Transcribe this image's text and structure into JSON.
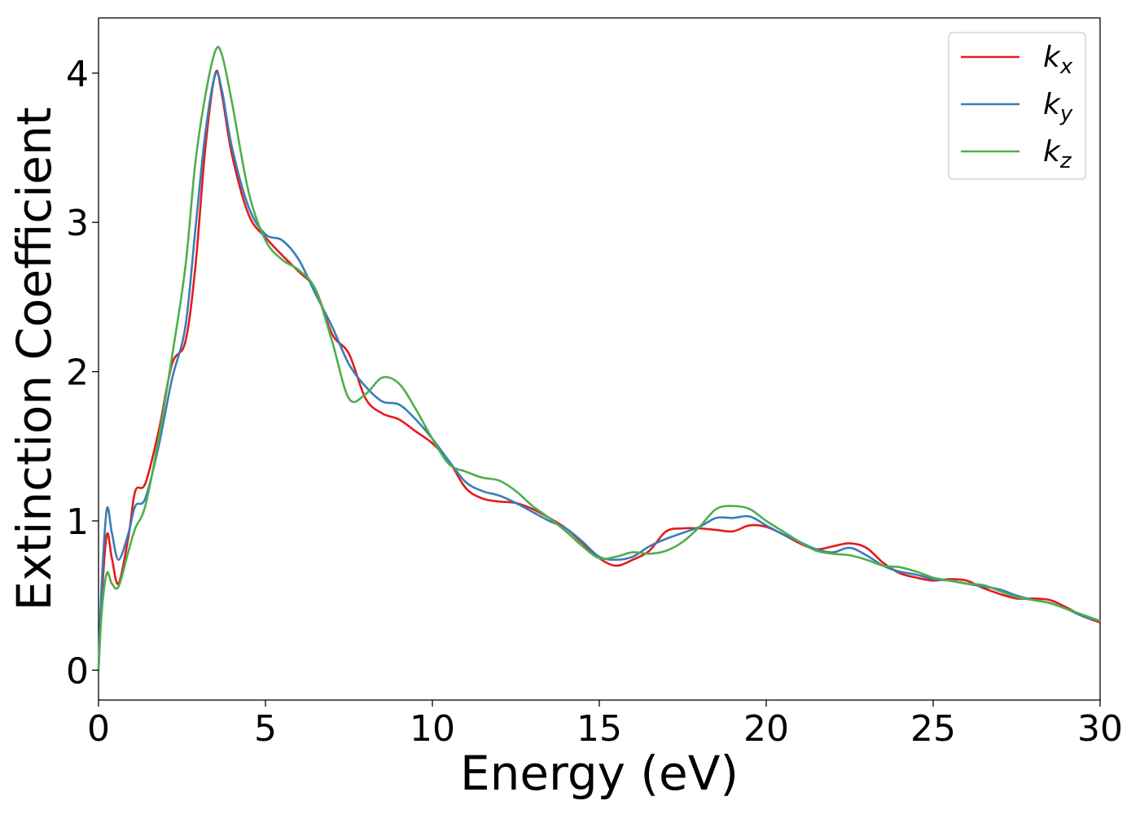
{
  "chart_data": {
    "type": "line",
    "title": "",
    "xlabel": "Energy (eV)",
    "ylabel": "Extinction Coefficient",
    "xlim": [
      0,
      30
    ],
    "ylim": [
      -0.2,
      4.37
    ],
    "xticks": [
      0,
      5,
      10,
      15,
      20,
      25,
      30
    ],
    "yticks": [
      0,
      1,
      2,
      3,
      4
    ],
    "grid": false,
    "legend_position": "top-right",
    "series": [
      {
        "name": "k_x",
        "legend_main": "k",
        "legend_sub": "x",
        "color": "#e41a1c",
        "points": [
          [
            0,
            0
          ],
          [
            0.1,
            0.5
          ],
          [
            0.25,
            0.91
          ],
          [
            0.4,
            0.75
          ],
          [
            0.6,
            0.58
          ],
          [
            0.9,
            0.9
          ],
          [
            1.1,
            1.2
          ],
          [
            1.4,
            1.25
          ],
          [
            1.8,
            1.6
          ],
          [
            2.2,
            2.05
          ],
          [
            2.6,
            2.2
          ],
          [
            2.9,
            2.7
          ],
          [
            3.2,
            3.5
          ],
          [
            3.5,
            4.0
          ],
          [
            3.7,
            3.85
          ],
          [
            4.0,
            3.45
          ],
          [
            4.5,
            3.05
          ],
          [
            5.0,
            2.9
          ],
          [
            5.5,
            2.78
          ],
          [
            6.0,
            2.67
          ],
          [
            6.5,
            2.55
          ],
          [
            7.0,
            2.25
          ],
          [
            7.5,
            2.12
          ],
          [
            8.0,
            1.82
          ],
          [
            8.5,
            1.72
          ],
          [
            9.0,
            1.68
          ],
          [
            9.5,
            1.6
          ],
          [
            10.0,
            1.52
          ],
          [
            10.5,
            1.4
          ],
          [
            11.0,
            1.22
          ],
          [
            11.5,
            1.15
          ],
          [
            12.0,
            1.13
          ],
          [
            12.5,
            1.12
          ],
          [
            13.0,
            1.08
          ],
          [
            13.5,
            1.02
          ],
          [
            14.0,
            0.95
          ],
          [
            14.5,
            0.85
          ],
          [
            15.0,
            0.75
          ],
          [
            15.5,
            0.7
          ],
          [
            16.0,
            0.74
          ],
          [
            16.5,
            0.8
          ],
          [
            17.0,
            0.93
          ],
          [
            17.5,
            0.95
          ],
          [
            18.0,
            0.95
          ],
          [
            18.5,
            0.94
          ],
          [
            19.0,
            0.93
          ],
          [
            19.5,
            0.97
          ],
          [
            20.0,
            0.96
          ],
          [
            20.5,
            0.91
          ],
          [
            21.0,
            0.85
          ],
          [
            21.5,
            0.81
          ],
          [
            22.0,
            0.83
          ],
          [
            22.5,
            0.85
          ],
          [
            23.0,
            0.82
          ],
          [
            23.5,
            0.72
          ],
          [
            24.0,
            0.65
          ],
          [
            24.5,
            0.62
          ],
          [
            25.0,
            0.6
          ],
          [
            25.5,
            0.61
          ],
          [
            26.0,
            0.6
          ],
          [
            26.5,
            0.55
          ],
          [
            27.0,
            0.51
          ],
          [
            27.5,
            0.48
          ],
          [
            28.0,
            0.48
          ],
          [
            28.5,
            0.47
          ],
          [
            29.0,
            0.42
          ],
          [
            29.5,
            0.36
          ],
          [
            30.0,
            0.32
          ]
        ]
      },
      {
        "name": "k_y",
        "legend_main": "k",
        "legend_sub": "y",
        "color": "#377eb8",
        "points": [
          [
            0,
            0
          ],
          [
            0.1,
            0.6
          ],
          [
            0.25,
            1.08
          ],
          [
            0.4,
            0.92
          ],
          [
            0.6,
            0.74
          ],
          [
            0.9,
            0.92
          ],
          [
            1.1,
            1.1
          ],
          [
            1.4,
            1.15
          ],
          [
            1.8,
            1.5
          ],
          [
            2.2,
            1.95
          ],
          [
            2.6,
            2.3
          ],
          [
            2.9,
            2.95
          ],
          [
            3.2,
            3.6
          ],
          [
            3.5,
            3.99
          ],
          [
            3.7,
            3.88
          ],
          [
            4.0,
            3.5
          ],
          [
            4.5,
            3.1
          ],
          [
            5.0,
            2.92
          ],
          [
            5.5,
            2.88
          ],
          [
            6.0,
            2.75
          ],
          [
            6.5,
            2.52
          ],
          [
            7.0,
            2.3
          ],
          [
            7.5,
            2.05
          ],
          [
            8.0,
            1.9
          ],
          [
            8.5,
            1.8
          ],
          [
            9.0,
            1.78
          ],
          [
            9.5,
            1.68
          ],
          [
            10.0,
            1.55
          ],
          [
            10.5,
            1.4
          ],
          [
            11.0,
            1.26
          ],
          [
            11.5,
            1.2
          ],
          [
            12.0,
            1.17
          ],
          [
            12.5,
            1.12
          ],
          [
            13.0,
            1.06
          ],
          [
            13.5,
            1.0
          ],
          [
            14.0,
            0.95
          ],
          [
            14.5,
            0.86
          ],
          [
            15.0,
            0.76
          ],
          [
            15.5,
            0.74
          ],
          [
            16.0,
            0.76
          ],
          [
            16.5,
            0.83
          ],
          [
            17.0,
            0.88
          ],
          [
            17.5,
            0.92
          ],
          [
            18.0,
            0.96
          ],
          [
            18.5,
            1.02
          ],
          [
            19.0,
            1.02
          ],
          [
            19.5,
            1.03
          ],
          [
            20.0,
            0.97
          ],
          [
            20.5,
            0.91
          ],
          [
            21.0,
            0.86
          ],
          [
            21.5,
            0.81
          ],
          [
            22.0,
            0.79
          ],
          [
            22.5,
            0.82
          ],
          [
            23.0,
            0.77
          ],
          [
            23.5,
            0.7
          ],
          [
            24.0,
            0.66
          ],
          [
            24.5,
            0.64
          ],
          [
            25.0,
            0.61
          ],
          [
            25.5,
            0.6
          ],
          [
            26.0,
            0.58
          ],
          [
            26.5,
            0.56
          ],
          [
            27.0,
            0.54
          ],
          [
            27.5,
            0.5
          ],
          [
            28.0,
            0.47
          ],
          [
            28.5,
            0.45
          ],
          [
            29.0,
            0.41
          ],
          [
            29.5,
            0.36
          ],
          [
            30.0,
            0.33
          ]
        ]
      },
      {
        "name": "k_z",
        "legend_main": "k",
        "legend_sub": "z",
        "color": "#4daf4a",
        "points": [
          [
            0,
            0
          ],
          [
            0.1,
            0.4
          ],
          [
            0.25,
            0.65
          ],
          [
            0.4,
            0.58
          ],
          [
            0.6,
            0.56
          ],
          [
            0.9,
            0.8
          ],
          [
            1.1,
            0.95
          ],
          [
            1.4,
            1.1
          ],
          [
            1.8,
            1.55
          ],
          [
            2.2,
            2.1
          ],
          [
            2.6,
            2.7
          ],
          [
            2.9,
            3.4
          ],
          [
            3.2,
            3.85
          ],
          [
            3.5,
            4.15
          ],
          [
            3.7,
            4.12
          ],
          [
            4.0,
            3.8
          ],
          [
            4.5,
            3.2
          ],
          [
            5.0,
            2.88
          ],
          [
            5.5,
            2.75
          ],
          [
            6.0,
            2.68
          ],
          [
            6.5,
            2.55
          ],
          [
            7.0,
            2.2
          ],
          [
            7.5,
            1.82
          ],
          [
            8.0,
            1.85
          ],
          [
            8.5,
            1.96
          ],
          [
            9.0,
            1.92
          ],
          [
            9.5,
            1.75
          ],
          [
            10.0,
            1.55
          ],
          [
            10.5,
            1.38
          ],
          [
            11.0,
            1.33
          ],
          [
            11.5,
            1.29
          ],
          [
            12.0,
            1.27
          ],
          [
            12.5,
            1.2
          ],
          [
            13.0,
            1.1
          ],
          [
            13.5,
            1.02
          ],
          [
            14.0,
            0.93
          ],
          [
            14.5,
            0.83
          ],
          [
            15.0,
            0.75
          ],
          [
            15.5,
            0.76
          ],
          [
            16.0,
            0.79
          ],
          [
            16.5,
            0.78
          ],
          [
            17.0,
            0.8
          ],
          [
            17.5,
            0.86
          ],
          [
            18.0,
            0.96
          ],
          [
            18.5,
            1.08
          ],
          [
            19.0,
            1.1
          ],
          [
            19.5,
            1.08
          ],
          [
            20.0,
            1.0
          ],
          [
            20.5,
            0.93
          ],
          [
            21.0,
            0.86
          ],
          [
            21.5,
            0.8
          ],
          [
            22.0,
            0.78
          ],
          [
            22.5,
            0.77
          ],
          [
            23.0,
            0.74
          ],
          [
            23.5,
            0.7
          ],
          [
            24.0,
            0.69
          ],
          [
            24.5,
            0.66
          ],
          [
            25.0,
            0.62
          ],
          [
            25.5,
            0.6
          ],
          [
            26.0,
            0.58
          ],
          [
            26.5,
            0.57
          ],
          [
            27.0,
            0.53
          ],
          [
            27.5,
            0.49
          ],
          [
            28.0,
            0.47
          ],
          [
            28.5,
            0.45
          ],
          [
            29.0,
            0.41
          ],
          [
            29.5,
            0.37
          ],
          [
            30.0,
            0.33
          ]
        ]
      }
    ]
  }
}
